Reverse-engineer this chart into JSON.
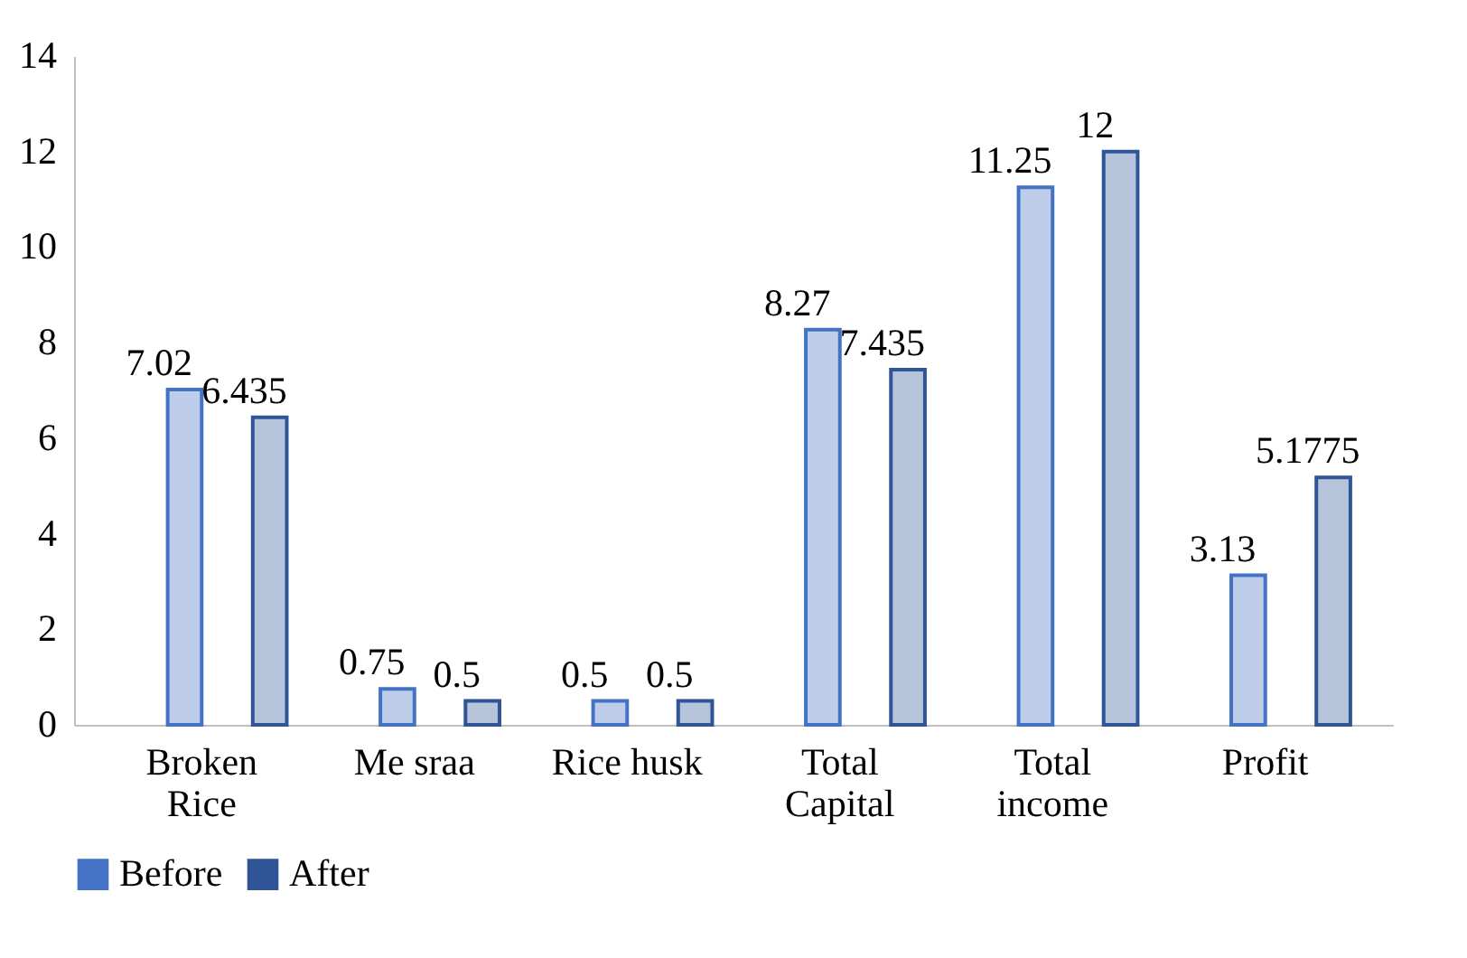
{
  "chart_data": {
    "type": "bar",
    "categories": [
      "Broken Rice",
      "Me sraa",
      "Rice husk",
      "Total Capital",
      "Total income",
      "Profit"
    ],
    "series": [
      {
        "name": "Before",
        "color": "#4472c4",
        "values": [
          7.02,
          0.75,
          0.5,
          8.27,
          11.25,
          3.13
        ]
      },
      {
        "name": "After",
        "color": "#2f5597",
        "values": [
          6.435,
          0.5,
          0.5,
          7.435,
          12,
          5.1775
        ]
      }
    ],
    "ylim": [
      0,
      14
    ],
    "yticks": [
      0,
      2,
      4,
      6,
      8,
      10,
      12,
      14
    ],
    "data_labels": true,
    "grid": false,
    "legend": "bottom"
  }
}
